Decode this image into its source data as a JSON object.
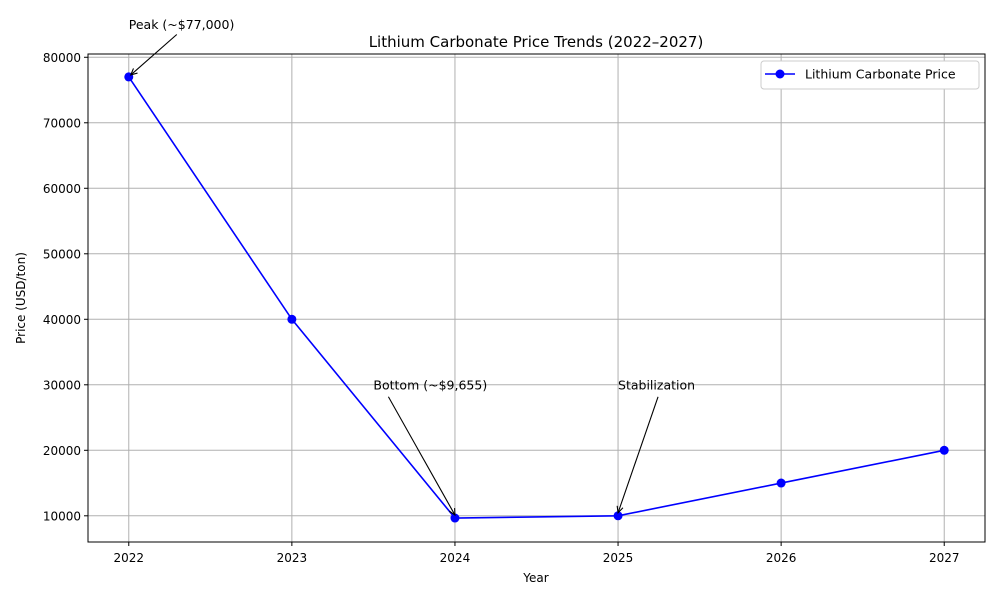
{
  "chart_data": {
    "type": "line",
    "title": "Lithium Carbonate Price Trends (2022–2027)",
    "xlabel": "Year",
    "ylabel": "Price (USD/ton)",
    "x": [
      2022,
      2023,
      2024,
      2025,
      2026,
      2027
    ],
    "series": [
      {
        "name": "Lithium Carbonate Price",
        "values": [
          77000,
          40000,
          9655,
          10000,
          15000,
          20000
        ],
        "color": "#0000ff"
      }
    ],
    "xlim": [
      2021.75,
      2027.25
    ],
    "ylim": [
      6000,
      80500
    ],
    "yticks": [
      10000,
      20000,
      30000,
      40000,
      50000,
      60000,
      70000,
      80000
    ],
    "xticks": [
      2022,
      2023,
      2024,
      2025,
      2026,
      2027
    ],
    "grid": true,
    "legend": "top-right",
    "annotations": [
      {
        "text": "Peak (~$77,000)",
        "point": [
          2022,
          77000
        ],
        "text_at": [
          2022,
          85000
        ]
      },
      {
        "text": "Bottom (~$9,655)",
        "point": [
          2024,
          9655
        ],
        "text_at": [
          2023.5,
          30000
        ]
      },
      {
        "text": "Stabilization",
        "point": [
          2025,
          10000
        ],
        "text_at": [
          2025,
          30000
        ]
      }
    ]
  }
}
